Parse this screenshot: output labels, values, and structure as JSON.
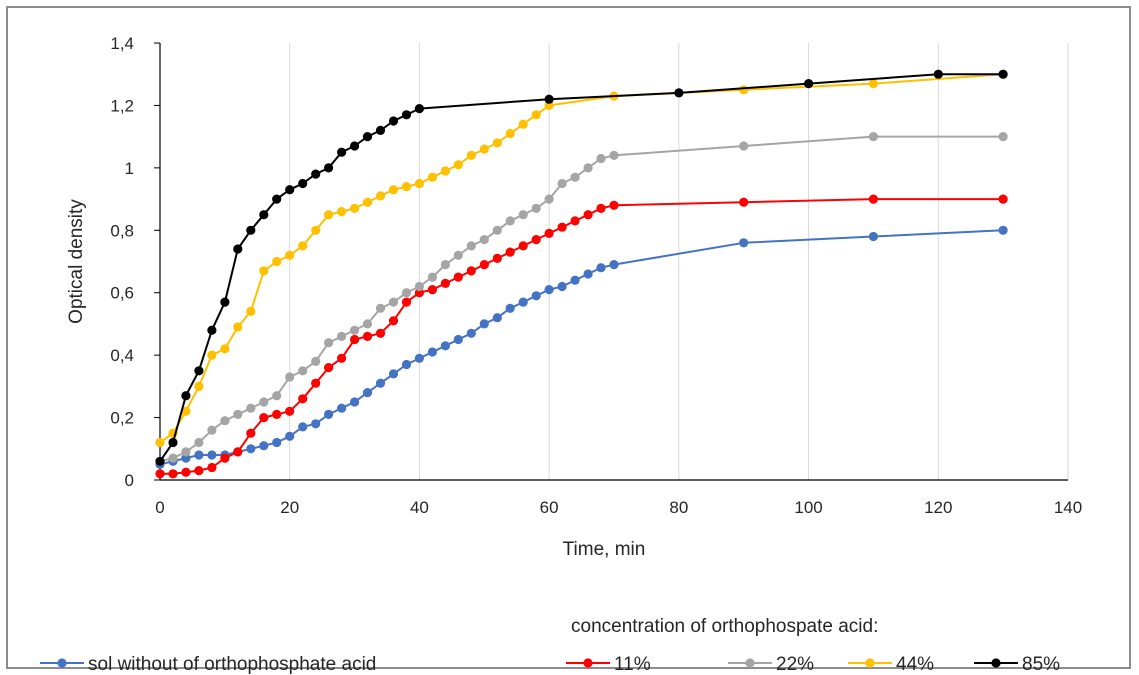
{
  "chart_data": {
    "type": "line",
    "xlabel": "Time, min",
    "ylabel": "Optical density",
    "xlim": [
      0,
      140
    ],
    "ylim": [
      0,
      1.4
    ],
    "x_ticks": [
      "0",
      "20",
      "40",
      "60",
      "80",
      "100",
      "120",
      "140"
    ],
    "y_ticks": [
      "0",
      "0,2",
      "0,4",
      "0,6",
      "0,8",
      "1",
      "1,2",
      "1,4"
    ],
    "grid": "vertical",
    "legend_position": "bottom",
    "legend_title": "concentration of orthophospate acid:",
    "series": [
      {
        "name": "sol without of orthophosphate acid",
        "color": "#4472c4",
        "x": [
          0,
          2,
          4,
          6,
          8,
          10,
          12,
          14,
          16,
          18,
          20,
          22,
          24,
          26,
          28,
          30,
          32,
          34,
          36,
          38,
          40,
          42,
          44,
          46,
          48,
          50,
          52,
          54,
          56,
          58,
          60,
          62,
          64,
          66,
          68,
          70,
          90,
          110,
          130
        ],
        "y": [
          0.05,
          0.06,
          0.07,
          0.08,
          0.08,
          0.08,
          0.09,
          0.1,
          0.11,
          0.12,
          0.14,
          0.17,
          0.18,
          0.21,
          0.23,
          0.25,
          0.28,
          0.31,
          0.34,
          0.37,
          0.39,
          0.41,
          0.43,
          0.45,
          0.47,
          0.5,
          0.52,
          0.55,
          0.57,
          0.59,
          0.61,
          0.62,
          0.64,
          0.66,
          0.68,
          0.69,
          0.76,
          0.78,
          0.8
        ]
      },
      {
        "name": "11%",
        "color": "#ff0000",
        "x": [
          0,
          2,
          4,
          6,
          8,
          10,
          12,
          14,
          16,
          18,
          20,
          22,
          24,
          26,
          28,
          30,
          32,
          34,
          36,
          38,
          40,
          42,
          44,
          46,
          48,
          50,
          52,
          54,
          56,
          58,
          60,
          62,
          64,
          66,
          68,
          70,
          90,
          110,
          130
        ],
        "y": [
          0.02,
          0.02,
          0.025,
          0.03,
          0.04,
          0.07,
          0.09,
          0.15,
          0.2,
          0.21,
          0.22,
          0.26,
          0.31,
          0.36,
          0.39,
          0.45,
          0.46,
          0.47,
          0.51,
          0.57,
          0.6,
          0.61,
          0.63,
          0.65,
          0.67,
          0.69,
          0.71,
          0.73,
          0.75,
          0.77,
          0.79,
          0.81,
          0.83,
          0.85,
          0.87,
          0.88,
          0.89,
          0.9,
          0.9
        ]
      },
      {
        "name": "22%",
        "color": "#a5a5a5",
        "x": [
          0,
          2,
          4,
          6,
          8,
          10,
          12,
          14,
          16,
          18,
          20,
          22,
          24,
          26,
          28,
          30,
          32,
          34,
          36,
          38,
          40,
          42,
          44,
          46,
          48,
          50,
          52,
          54,
          56,
          58,
          60,
          62,
          64,
          66,
          68,
          70,
          90,
          110,
          130
        ],
        "y": [
          0.06,
          0.07,
          0.09,
          0.12,
          0.16,
          0.19,
          0.21,
          0.23,
          0.25,
          0.27,
          0.33,
          0.35,
          0.38,
          0.44,
          0.46,
          0.48,
          0.5,
          0.55,
          0.57,
          0.6,
          0.62,
          0.65,
          0.69,
          0.72,
          0.75,
          0.77,
          0.8,
          0.83,
          0.85,
          0.87,
          0.9,
          0.95,
          0.97,
          1.0,
          1.03,
          1.04,
          1.07,
          1.1,
          1.1
        ]
      },
      {
        "name": "44%",
        "color": "#ffc000",
        "x": [
          0,
          2,
          4,
          6,
          8,
          10,
          12,
          14,
          16,
          18,
          20,
          22,
          24,
          26,
          28,
          30,
          32,
          34,
          36,
          38,
          40,
          42,
          44,
          46,
          48,
          50,
          52,
          54,
          56,
          58,
          60,
          70,
          90,
          110,
          130
        ],
        "y": [
          0.12,
          0.15,
          0.22,
          0.3,
          0.4,
          0.42,
          0.49,
          0.54,
          0.67,
          0.7,
          0.72,
          0.75,
          0.8,
          0.85,
          0.86,
          0.87,
          0.89,
          0.91,
          0.93,
          0.94,
          0.95,
          0.97,
          0.99,
          1.01,
          1.04,
          1.06,
          1.08,
          1.11,
          1.14,
          1.17,
          1.2,
          1.23,
          1.25,
          1.27,
          1.3
        ]
      },
      {
        "name": "85%",
        "color": "#000000",
        "x": [
          0,
          2,
          4,
          6,
          8,
          10,
          12,
          14,
          16,
          18,
          20,
          22,
          24,
          26,
          28,
          30,
          32,
          34,
          36,
          38,
          40,
          60,
          80,
          100,
          120,
          130
        ],
        "y": [
          0.06,
          0.12,
          0.27,
          0.35,
          0.48,
          0.57,
          0.74,
          0.8,
          0.85,
          0.9,
          0.93,
          0.95,
          0.98,
          1.0,
          1.05,
          1.07,
          1.1,
          1.12,
          1.15,
          1.17,
          1.19,
          1.22,
          1.24,
          1.27,
          1.3,
          1.3
        ]
      }
    ]
  }
}
